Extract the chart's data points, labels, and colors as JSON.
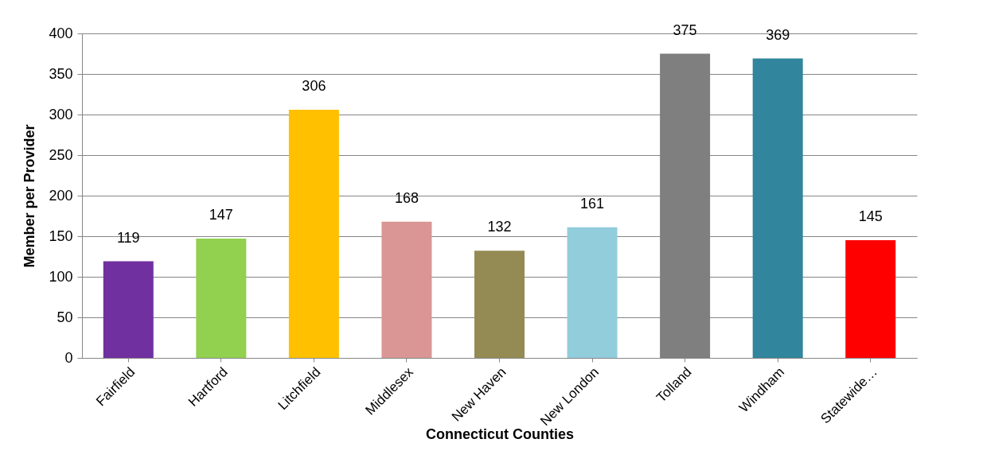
{
  "chart_data": {
    "type": "bar",
    "xlabel": "Connecticut Counties",
    "ylabel": "Member per Provider",
    "categories": [
      "Fairfield",
      "Hartford",
      "Litchfield",
      "Middlesex",
      "New Haven",
      "New London",
      "Tolland",
      "Windham",
      "Statewide…"
    ],
    "values": [
      119,
      147,
      306,
      168,
      132,
      161,
      375,
      369,
      145
    ],
    "colors": [
      "#7030a0",
      "#92d050",
      "#ffc000",
      "#d99694",
      "#948a54",
      "#92cddc",
      "#7f7f7f",
      "#31859c",
      "#ff0000"
    ],
    "ylim": [
      0,
      400
    ],
    "yticks": [
      0,
      50,
      100,
      150,
      200,
      250,
      300,
      350,
      400
    ],
    "grid": "y",
    "data_labels": true
  }
}
